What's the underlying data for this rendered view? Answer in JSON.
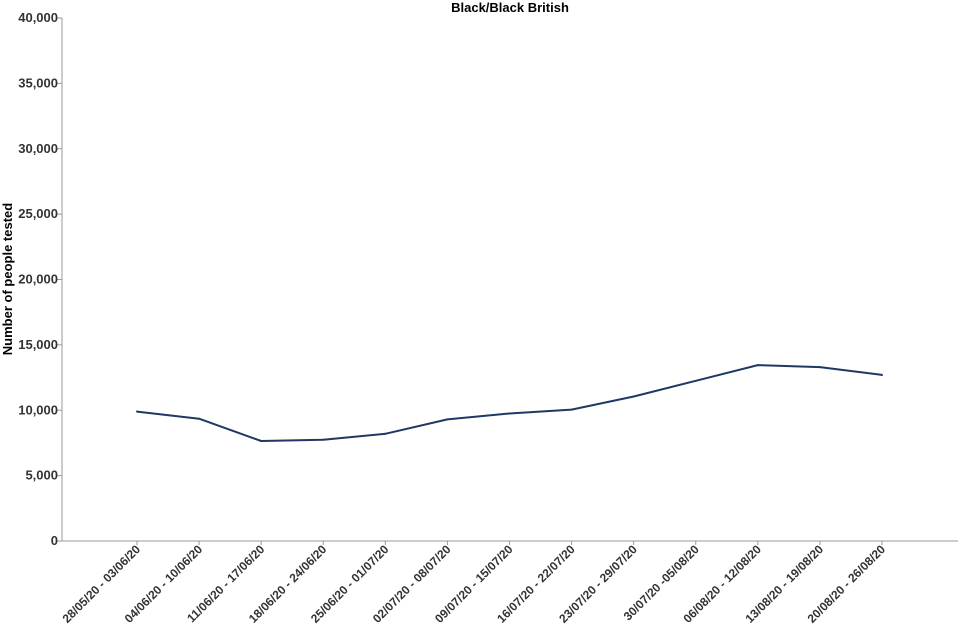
{
  "chart_data": {
    "type": "line",
    "title": "Black/Black British",
    "xlabel": "",
    "ylabel": "Number of people tested",
    "ylim": [
      0,
      40000
    ],
    "yticks": [
      "0",
      "5,000",
      "10,000",
      "15,000",
      "20,000",
      "25,000",
      "30,000",
      "35,000",
      "40,000"
    ],
    "grid": false,
    "legend": "none",
    "categories": [
      "28/05/20 - 03/06/20",
      "04/06/20 - 10/06/20",
      "11/06/20 - 17/06/20",
      "18/06/20 - 24/06/20",
      "25/06/20 - 01/07/20",
      "02/07/20 - 08/07/20",
      "09/07/20 - 15/07/20",
      "16/07/20 - 22/07/20",
      "23/07/20 - 29/07/20",
      "30/07/20 -05/08/20",
      "06/08/20 - 12/08/20",
      "13/08/20 - 19/08/20",
      "20/08/20 - 26/08/20"
    ],
    "series": [
      {
        "values": [
          9900,
          9350,
          7650,
          7750,
          8200,
          9300,
          9750,
          10050,
          11050,
          12250,
          13450,
          13300,
          12700
        ],
        "color": "#1f3864"
      }
    ]
  }
}
